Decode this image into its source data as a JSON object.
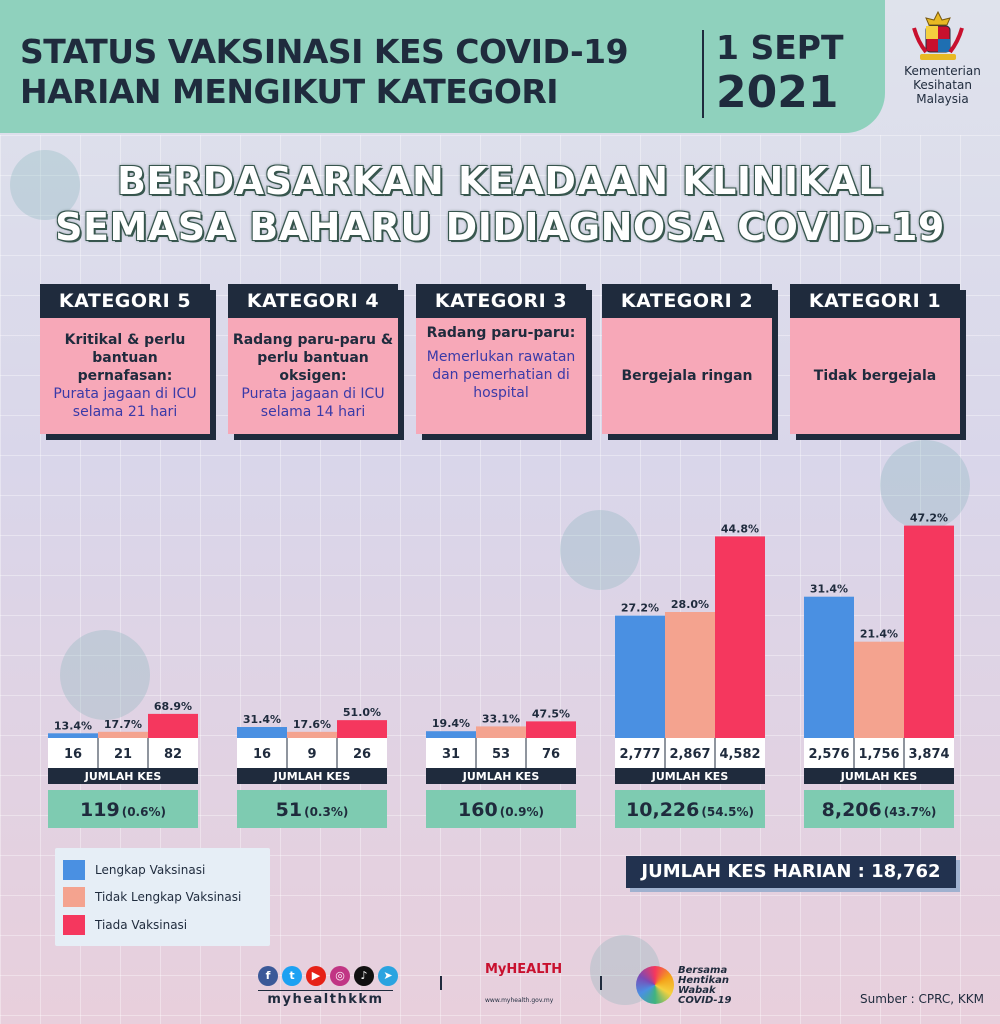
{
  "header": {
    "title_line1": "STATUS VAKSINASI KES COVID-19",
    "title_line2": "HARIAN MENGIKUT KATEGORI",
    "date_line1": "1 SEPT",
    "date_line2": "2021",
    "ministry_line1": "Kementerian",
    "ministry_line2": "Kesihatan",
    "ministry_line3": "Malaysia"
  },
  "subtitle": {
    "line1": "BERDASARKAN KEADAAN KLINIKAL",
    "line2": "SEMASA BAHARU DIDIAGNOSA COVID-19"
  },
  "categories": [
    {
      "name": "KATEGORI 5",
      "desc": "Kritikal & perlu bantuan pernafasan:",
      "note": "Purata jagaan di ICU selama 21 hari"
    },
    {
      "name": "KATEGORI 4",
      "desc": "Radang paru-paru & perlu bantuan oksigen:",
      "note": "Purata jagaan di ICU selama 14 hari"
    },
    {
      "name": "KATEGORI 3",
      "desc": "Radang paru-paru:",
      "note": "Memerlukan rawatan dan pemerhatian di hospital"
    },
    {
      "name": "KATEGORI 2",
      "desc": "Bergejala ringan",
      "note": ""
    },
    {
      "name": "KATEGORI 1",
      "desc": "Tidak bergejala",
      "note": ""
    }
  ],
  "chart_data": {
    "type": "bar",
    "categories": [
      "KATEGORI 5",
      "KATEGORI 4",
      "KATEGORI 3",
      "KATEGORI 2",
      "KATEGORI 1"
    ],
    "series": [
      {
        "name": "Lengkap Vaksinasi",
        "color": "#4a90e2",
        "percent": [
          13.4,
          31.4,
          19.4,
          27.2,
          31.4
        ],
        "percent_labels": [
          "13.4%",
          "31.4%",
          "19.4%",
          "27.2%",
          "31.4%"
        ],
        "count_labels": [
          "16",
          "16",
          "31",
          "2,777",
          "2,576"
        ]
      },
      {
        "name": "Tidak Lengkap Vaksinasi",
        "color": "#f4a38f",
        "percent": [
          17.7,
          17.6,
          33.1,
          28.0,
          21.4
        ],
        "percent_labels": [
          "17.7%",
          "17.6%",
          "33.1%",
          "28.0%",
          "21.4%"
        ],
        "count_labels": [
          "21",
          "9",
          "53",
          "2,867",
          "1,756"
        ]
      },
      {
        "name": "Tiada Vaksinasi",
        "color": "#f5375e",
        "percent": [
          68.9,
          51.0,
          47.5,
          44.8,
          47.2
        ],
        "percent_labels": [
          "68.9%",
          "51.0%",
          "47.5%",
          "44.8%",
          "47.2%"
        ],
        "count_labels": [
          "82",
          "26",
          "76",
          "4,582",
          "3,874"
        ]
      }
    ],
    "group_bar_scale": [
      0.0,
      0.0,
      0.0,
      1.0,
      1.0
    ],
    "jumlah_kes_label": "JUMLAH KES",
    "totals": [
      "119",
      "51",
      "160",
      "10,226",
      "8,206"
    ],
    "total_shares": [
      "(0.6%)",
      "(0.3%)",
      "(0.9%)",
      "(54.5%)",
      "(43.7%)"
    ]
  },
  "legend": [
    {
      "label": "Lengkap Vaksinasi",
      "color": "#4a90e2"
    },
    {
      "label": "Tidak Lengkap Vaksinasi",
      "color": "#f4a38f"
    },
    {
      "label": "Tiada Vaksinasi",
      "color": "#f5375e"
    }
  ],
  "total_harian": "JUMLAH KES HARIAN : 18,762",
  "footer": {
    "handle": "myhealthkkm",
    "myhealth": "MyHEALTH",
    "myhealth_url": "www.myhealth.gov.my",
    "bersama_line1": "Bersama",
    "bersama_line2": "Hentikan",
    "bersama_line3": "Wabak",
    "bersama_line4": "COVID-19",
    "source": "Sumber : CPRC, KKM"
  }
}
